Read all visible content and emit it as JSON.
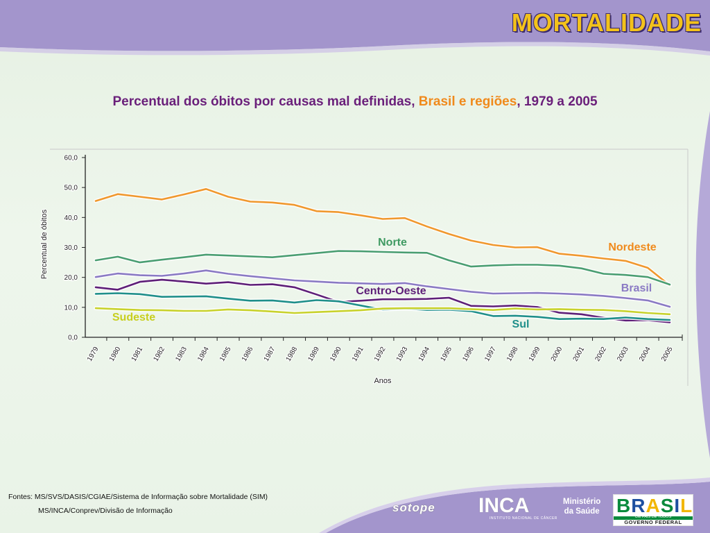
{
  "slide": {
    "title": "MORTALIDADE",
    "subtitle_part1": "Percentual dos óbitos por causas mal definidas, ",
    "subtitle_part2": "Brasil e regiões",
    "subtitle_part3": ", 1979 a 2005"
  },
  "sources": {
    "line1": "Fontes: MS/SVS/DASIS/CGIAE/Sistema de Informação sobre Mortalidade (SIM)",
    "line2": "MS/INCA/Conprev/Divisão de Informação"
  },
  "logos": {
    "sotope": "sotope",
    "inca": "INCA",
    "inca_sub": "INSTITUTO NACIONAL DE CÂNCER",
    "ministerio_line1": "Ministério",
    "ministerio_line2": "da Saúde",
    "brasil": "BRASIL",
    "brasil_tagline": "UM PAÍS DE TODOS",
    "governo": "GOVERNO FEDERAL"
  },
  "colors": {
    "frame_purple": "#9e8fc6",
    "title_yellow": "#f3c21b",
    "subtitle_purple": "#6a1f7a",
    "subtitle_orange": "#f08a1c"
  },
  "chart_data": {
    "type": "line",
    "ylabel": "Percentual de óbitos",
    "xlabel": "Anos",
    "ylim": [
      0,
      60
    ],
    "yticks": [
      "0,0",
      "10,0",
      "20,0",
      "30,0",
      "40,0",
      "50,0",
      "60,0"
    ],
    "x": [
      "1979",
      "1980",
      "1981",
      "1982",
      "1983",
      "1984",
      "1985",
      "1986",
      "1987",
      "1988",
      "1989",
      "1990",
      "1991",
      "1992",
      "1993",
      "1994",
      "1995",
      "1996",
      "1997",
      "1998",
      "1999",
      "2000",
      "2001",
      "2002",
      "2003",
      "2004",
      "2005"
    ],
    "grid": false,
    "series": [
      {
        "name": "Nordeste",
        "color": "#f0982e",
        "values": [
          45.5,
          47.8,
          46.9,
          46.0,
          47.7,
          49.5,
          46.9,
          45.3,
          45.0,
          44.2,
          42.1,
          41.8,
          40.7,
          39.5,
          39.8,
          37.0,
          34.5,
          32.3,
          30.8,
          30.0,
          30.1,
          27.9,
          27.2,
          26.3,
          25.5,
          23.2,
          17.3
        ]
      },
      {
        "name": "Norte",
        "color": "#4a9e72",
        "values": [
          25.7,
          26.9,
          25.0,
          25.9,
          26.7,
          27.6,
          27.3,
          27.0,
          26.7,
          27.4,
          28.1,
          28.8,
          28.7,
          28.5,
          28.3,
          28.2,
          25.7,
          23.6,
          24.0,
          24.2,
          24.2,
          23.9,
          23.0,
          21.2,
          20.8,
          20.1,
          17.6
        ]
      },
      {
        "name": "Brasil",
        "color": "#8a7ac4",
        "values": [
          20.1,
          21.3,
          20.7,
          20.5,
          21.3,
          22.3,
          21.2,
          20.4,
          19.7,
          19.0,
          18.6,
          18.2,
          18.0,
          17.8,
          18.1,
          17.0,
          16.1,
          15.2,
          14.6,
          14.7,
          14.8,
          14.6,
          14.3,
          13.8,
          13.1,
          12.3,
          10.2
        ]
      },
      {
        "name": "Centro-Oeste",
        "color": "#5e1f78",
        "values": [
          16.7,
          15.9,
          18.5,
          19.2,
          18.6,
          17.9,
          18.4,
          17.5,
          17.7,
          16.7,
          14.3,
          11.8,
          12.2,
          12.7,
          12.7,
          12.8,
          13.2,
          10.5,
          10.3,
          10.6,
          10.1,
          8.2,
          7.7,
          6.5,
          5.6,
          5.7,
          5.0
        ]
      },
      {
        "name": "Sul",
        "color": "#1f8f8a",
        "values": [
          14.5,
          14.7,
          14.4,
          13.5,
          13.6,
          13.7,
          12.9,
          12.2,
          12.3,
          11.6,
          12.4,
          12.0,
          10.6,
          9.2,
          9.6,
          9.1,
          9.2,
          8.7,
          7.1,
          7.2,
          6.8,
          6.1,
          6.2,
          6.1,
          6.6,
          6.1,
          5.8
        ]
      },
      {
        "name": "Sudeste",
        "color": "#c8d22c",
        "values": [
          9.7,
          9.4,
          9.1,
          9.0,
          8.8,
          8.8,
          9.3,
          9.0,
          8.6,
          8.1,
          8.4,
          8.7,
          9.0,
          9.6,
          9.7,
          9.7,
          9.7,
          9.4,
          9.1,
          9.6,
          9.3,
          9.4,
          9.2,
          9.1,
          8.7,
          8.1,
          7.7
        ]
      }
    ]
  }
}
